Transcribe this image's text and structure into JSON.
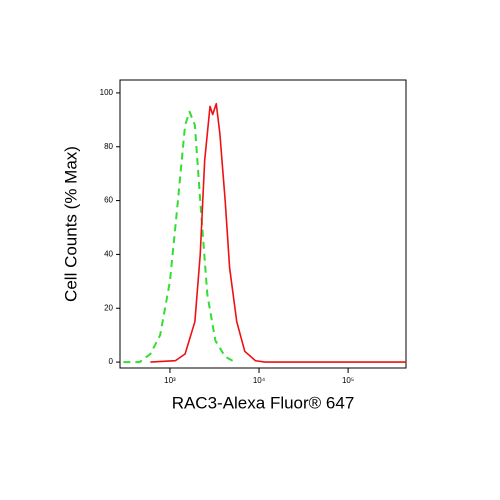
{
  "chart_data": {
    "type": "line",
    "xlabel": "RAC3-Alexa Fluor® 647",
    "ylabel": "Cell Counts (% Max)",
    "xscale": "log",
    "xlim": [
      275,
      446684
    ],
    "ylim": [
      -2.2,
      104.8
    ],
    "xticks": [
      {
        "value": 1000,
        "label": "10³"
      },
      {
        "value": 10000,
        "label": "10⁴"
      },
      {
        "value": 100000,
        "label": "10⁵"
      }
    ],
    "yticks": [
      0,
      20,
      40,
      60,
      80,
      100
    ],
    "series": [
      {
        "color": "#33dd33",
        "dash": true,
        "x": [
          300,
          457,
          603,
          776,
          1000,
          1230,
          1479,
          1660,
          1905,
          2188,
          2630,
          3236,
          4169,
          5370
        ],
        "values": [
          0,
          0,
          3,
          10,
          30,
          60,
          88,
          93,
          88,
          60,
          25,
          8,
          2,
          0
        ]
      },
      {
        "color": "#ee1111",
        "dash": false,
        "x": [
          603,
          1148,
          1479,
          1905,
          2188,
          2455,
          2818,
          3020,
          3311,
          3631,
          4169,
          4677,
          5623,
          6918,
          9120,
          11749,
          446684
        ],
        "values": [
          0,
          0.5,
          3,
          15,
          40,
          75,
          95,
          92,
          96,
          85,
          60,
          35,
          15,
          4,
          0.5,
          0,
          0
        ]
      }
    ]
  }
}
